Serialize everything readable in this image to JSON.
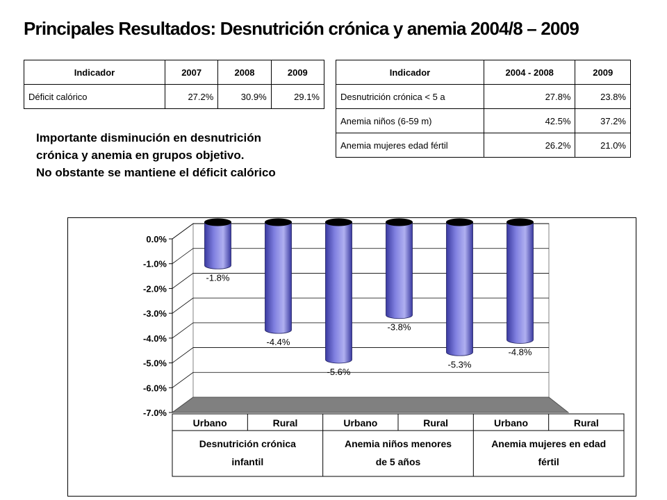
{
  "title": "Principales Resultados: Desnutrición crónica y anemia 2004/8 – 2009",
  "table1": {
    "headers": [
      "Indicador",
      "2007",
      "2008",
      "2009"
    ],
    "rows": [
      [
        "Déficit calórico",
        "27.2%",
        "30.9%",
        "29.1%"
      ]
    ]
  },
  "table2": {
    "headers": [
      "Indicador",
      "2004 - 2008",
      "2009"
    ],
    "rows": [
      [
        "Desnutrición crónica < 5 a",
        "27.8%",
        "23.8%"
      ],
      [
        "Anemia niños (6-59 m)",
        "42.5%",
        "37.2%"
      ],
      [
        "Anemia mujeres edad fértil",
        "26.2%",
        "21.0%"
      ]
    ]
  },
  "note": {
    "line1": "Importante disminución en desnutrición",
    "line2": "crónica y anemia en grupos objetivo.",
    "line3": "No obstante se mantiene el déficit calórico"
  },
  "chart_data": {
    "type": "bar",
    "categories": [
      "Urbano",
      "Rural",
      "Urbano",
      "Rural",
      "Urbano",
      "Rural"
    ],
    "groups": [
      {
        "label_line1": "Desnutrición crónica",
        "label_line2": "infantil"
      },
      {
        "label_line1": "Anemia niños menores",
        "label_line2": "de 5 años"
      },
      {
        "label_line1": "Anemia mujeres en edad",
        "label_line2": "fértil"
      }
    ],
    "values": [
      -1.8,
      -4.4,
      -5.6,
      -3.8,
      -5.3,
      -4.8
    ],
    "value_labels": [
      "-1.8%",
      "-4.4%",
      "-5.6%",
      "-3.8%",
      "-5.3%",
      "-4.8%"
    ],
    "ylim": [
      -7.0,
      0.0
    ],
    "yticks": [
      "0.0%",
      "-1.0%",
      "-2.0%",
      "-3.0%",
      "-4.0%",
      "-5.0%",
      "-6.0%",
      "-7.0%"
    ],
    "grid": true,
    "colors": {
      "bar": "#8080e0",
      "bar_dark": "#3a3aa0",
      "cap": "#000000",
      "floor": "#808080"
    }
  }
}
